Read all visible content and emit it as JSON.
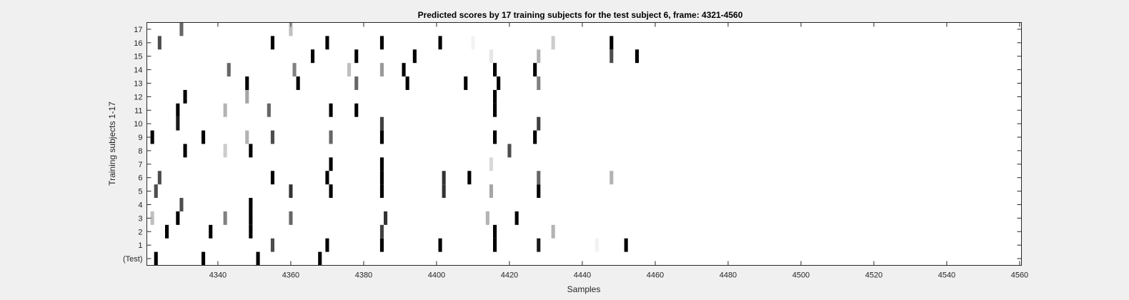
{
  "colors": {
    "figure_background": "#f0f0f0",
    "axes_background": "#ffffff",
    "axes_edge": "#262626",
    "text": "#262626",
    "colormap": "gray-inverted (darker = higher score)"
  },
  "chart_data": {
    "type": "heatmap",
    "title": "Predicted scores by 17 training subjects for the test subject 6, frame: 4321-4560",
    "xlabel": "Samples",
    "ylabel": "Training subjects 1-17",
    "xlim": [
      4321,
      4560
    ],
    "x_ticks": [
      4340,
      4360,
      4380,
      4400,
      4420,
      4440,
      4460,
      4480,
      4500,
      4520,
      4540,
      4560
    ],
    "x_tick_labels": [
      "4340",
      "4360",
      "4380",
      "4400",
      "4420",
      "4440",
      "4460",
      "4480",
      "4500",
      "4520",
      "4540",
      "4560"
    ],
    "y_tick_labels": [
      "(Test)",
      "1",
      "2",
      "3",
      "4",
      "5",
      "6",
      "7",
      "8",
      "9",
      "10",
      "11",
      "12",
      "13",
      "14",
      "15",
      "16",
      "17"
    ],
    "grid": false,
    "value_range": [
      0,
      1
    ],
    "rows": [
      {
        "label": "(Test)",
        "cells": [
          [
            4323,
            1.0
          ],
          [
            4336,
            1.0
          ],
          [
            4351,
            1.0
          ],
          [
            4368,
            1.0
          ]
        ]
      },
      {
        "label": "1",
        "cells": [
          [
            4355,
            0.7
          ],
          [
            4370,
            1.0
          ],
          [
            4385,
            1.0
          ],
          [
            4401,
            1.0
          ],
          [
            4416,
            1.0
          ],
          [
            4428,
            0.9
          ],
          [
            4444,
            0.05
          ],
          [
            4452,
            1.0
          ]
        ]
      },
      {
        "label": "2",
        "cells": [
          [
            4326,
            1.0
          ],
          [
            4338,
            1.0
          ],
          [
            4349,
            1.0
          ],
          [
            4385,
            0.75
          ],
          [
            4416,
            1.0
          ],
          [
            4432,
            0.3
          ]
        ]
      },
      {
        "label": "3",
        "cells": [
          [
            4322,
            0.25
          ],
          [
            4329,
            1.0
          ],
          [
            4342,
            0.5
          ],
          [
            4349,
            1.0
          ],
          [
            4360,
            0.6
          ],
          [
            4386,
            0.8
          ],
          [
            4414,
            0.3
          ],
          [
            4422,
            1.0
          ]
        ]
      },
      {
        "label": "4",
        "cells": [
          [
            4330,
            0.7
          ],
          [
            4349,
            1.0
          ]
        ]
      },
      {
        "label": "5",
        "cells": [
          [
            4323,
            0.7
          ],
          [
            4360,
            0.8
          ],
          [
            4371,
            1.0
          ],
          [
            4385,
            1.0
          ],
          [
            4402,
            0.8
          ],
          [
            4415,
            0.35
          ],
          [
            4428,
            1.0
          ]
        ]
      },
      {
        "label": "6",
        "cells": [
          [
            4324,
            0.7
          ],
          [
            4355,
            1.0
          ],
          [
            4370,
            1.0
          ],
          [
            4385,
            1.0
          ],
          [
            4402,
            0.8
          ],
          [
            4409,
            1.0
          ],
          [
            4428,
            0.6
          ],
          [
            4448,
            0.3
          ]
        ]
      },
      {
        "label": "7",
        "cells": [
          [
            4371,
            1.0
          ],
          [
            4385,
            1.0
          ],
          [
            4415,
            0.15
          ]
        ]
      },
      {
        "label": "8",
        "cells": [
          [
            4331,
            1.0
          ],
          [
            4342,
            0.2
          ],
          [
            4349,
            1.0
          ],
          [
            4420,
            0.7
          ]
        ]
      },
      {
        "label": "9",
        "cells": [
          [
            4322,
            1.0
          ],
          [
            4336,
            1.0
          ],
          [
            4348,
            0.3
          ],
          [
            4355,
            0.7
          ],
          [
            4371,
            0.6
          ],
          [
            4385,
            1.0
          ],
          [
            4416,
            1.0
          ],
          [
            4427,
            1.0
          ]
        ]
      },
      {
        "label": "10",
        "cells": [
          [
            4329,
            0.9
          ],
          [
            4385,
            0.75
          ],
          [
            4428,
            0.75
          ]
        ]
      },
      {
        "label": "11",
        "cells": [
          [
            4329,
            1.0
          ],
          [
            4342,
            0.3
          ],
          [
            4354,
            0.6
          ],
          [
            4371,
            1.0
          ],
          [
            4378,
            1.0
          ],
          [
            4416,
            1.0
          ]
        ]
      },
      {
        "label": "12",
        "cells": [
          [
            4331,
            1.0
          ],
          [
            4348,
            0.35
          ],
          [
            4416,
            1.0
          ]
        ]
      },
      {
        "label": "13",
        "cells": [
          [
            4348,
            1.0
          ],
          [
            4362,
            1.0
          ],
          [
            4378,
            0.6
          ],
          [
            4392,
            1.0
          ],
          [
            4408,
            1.0
          ],
          [
            4417,
            1.0
          ],
          [
            4428,
            0.5
          ]
        ]
      },
      {
        "label": "14",
        "cells": [
          [
            4343,
            0.6
          ],
          [
            4361,
            0.5
          ],
          [
            4376,
            0.25
          ],
          [
            4385,
            0.4
          ],
          [
            4391,
            1.0
          ],
          [
            4416,
            1.0
          ],
          [
            4427,
            1.0
          ]
        ]
      },
      {
        "label": "15",
        "cells": [
          [
            4366,
            1.0
          ],
          [
            4378,
            1.0
          ],
          [
            4394,
            1.0
          ],
          [
            4415,
            0.1
          ],
          [
            4428,
            0.3
          ],
          [
            4448,
            0.7
          ],
          [
            4455,
            1.0
          ]
        ]
      },
      {
        "label": "16",
        "cells": [
          [
            4324,
            0.7
          ],
          [
            4355,
            1.0
          ],
          [
            4370,
            1.0
          ],
          [
            4385,
            1.0
          ],
          [
            4401,
            1.0
          ],
          [
            4410,
            0.05
          ],
          [
            4432,
            0.2
          ],
          [
            4448,
            1.0
          ]
        ]
      },
      {
        "label": "17",
        "cells": [
          [
            4330,
            0.6
          ],
          [
            4360,
            0.25
          ]
        ]
      }
    ]
  }
}
